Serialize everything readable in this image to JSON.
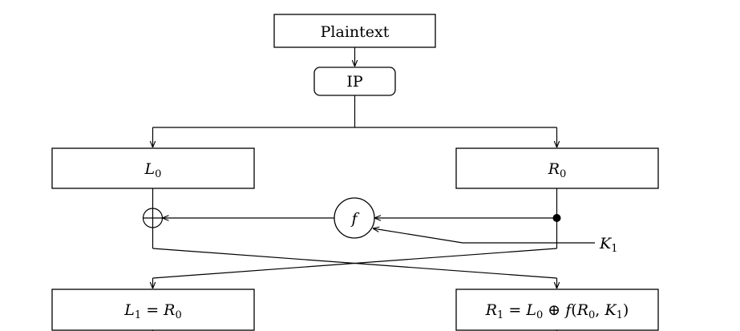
{
  "nodes": {
    "plaintext": "Plaintext",
    "ip": "IP",
    "f": "f",
    "key": {
      "base": "K",
      "sub": "1"
    },
    "l0": {
      "base": "L",
      "sub": "0"
    },
    "r0": {
      "base": "R",
      "sub": "0"
    },
    "l1": {
      "base": "L",
      "sub": "1",
      "eq": " = ",
      "rbase": "R",
      "rsub": "0"
    },
    "r1": {
      "base": "R",
      "sub": "1",
      "eq": " = ",
      "lbase": "L",
      "lsub": "0",
      "op": " ⊕ ",
      "fn": "f",
      "open": "(",
      "rbase": "R",
      "rsub": "0",
      "comma": ", ",
      "kbase": "K",
      "ksub": "1",
      "close": ")"
    }
  }
}
